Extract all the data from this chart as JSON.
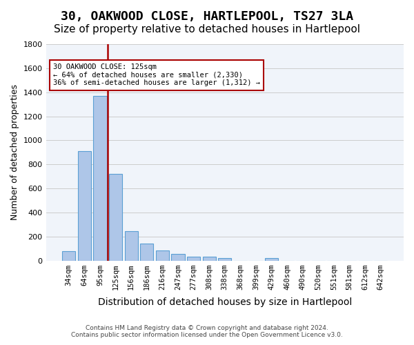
{
  "title": "30, OAKWOOD CLOSE, HARTLEPOOL, TS27 3LA",
  "subtitle": "Size of property relative to detached houses in Hartlepool",
  "xlabel": "Distribution of detached houses by size in Hartlepool",
  "ylabel": "Number of detached properties",
  "categories": [
    "34sqm",
    "64sqm",
    "95sqm",
    "125sqm",
    "156sqm",
    "186sqm",
    "216sqm",
    "247sqm",
    "277sqm",
    "308sqm",
    "338sqm",
    "368sqm",
    "399sqm",
    "429sqm",
    "460sqm",
    "490sqm",
    "520sqm",
    "551sqm",
    "581sqm",
    "612sqm",
    "642sqm"
  ],
  "values": [
    80,
    910,
    1370,
    720,
    245,
    140,
    85,
    55,
    30,
    30,
    20,
    0,
    0,
    20,
    0,
    0,
    0,
    0,
    0,
    0,
    0
  ],
  "bar_color": "#aec6e8",
  "bar_edge_color": "#5a9fd4",
  "vline_color": "#aa0000",
  "annotation_text": "30 OAKWOOD CLOSE: 125sqm\n← 64% of detached houses are smaller (2,330)\n36% of semi-detached houses are larger (1,312) →",
  "annotation_box_color": "#ffffff",
  "annotation_box_edge_color": "#aa0000",
  "ylim": [
    0,
    1800
  ],
  "yticks": [
    0,
    200,
    400,
    600,
    800,
    1000,
    1200,
    1400,
    1600,
    1800
  ],
  "grid_color": "#cccccc",
  "bg_color": "#f0f4fa",
  "footer1": "Contains HM Land Registry data © Crown copyright and database right 2024.",
  "footer2": "Contains public sector information licensed under the Open Government Licence v3.0.",
  "title_fontsize": 13,
  "subtitle_fontsize": 11,
  "ylabel_fontsize": 9,
  "xlabel_fontsize": 10
}
